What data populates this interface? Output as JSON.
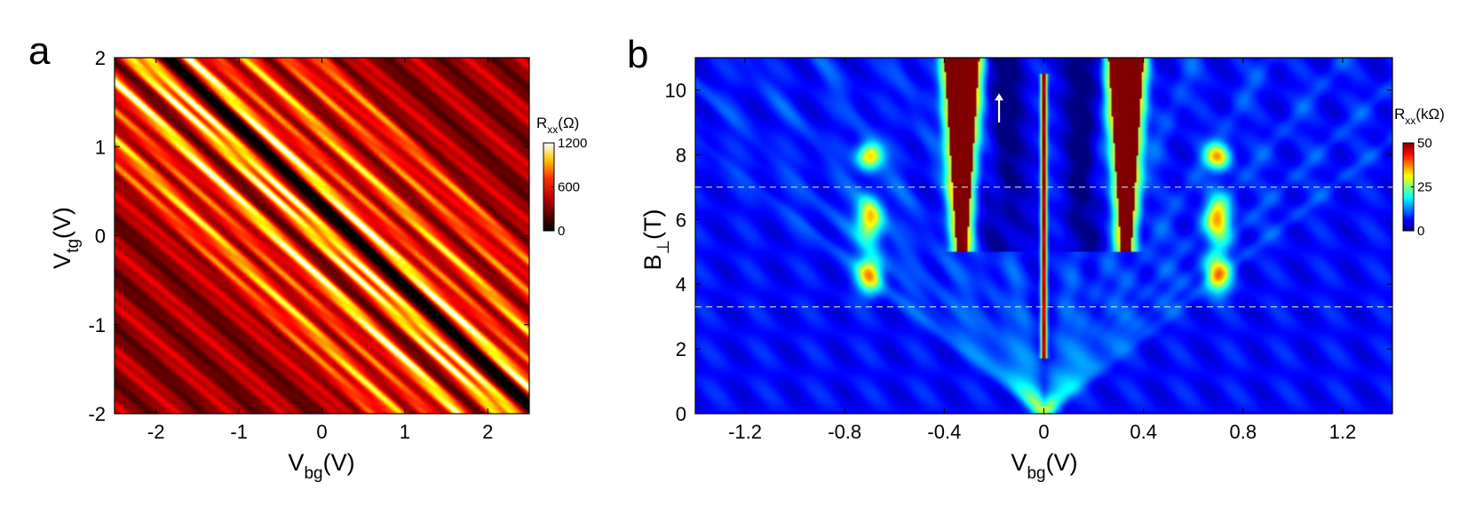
{
  "chart_data": [
    {
      "panel": "a",
      "type": "heatmap",
      "title": "",
      "xlabel": {
        "main": "V",
        "sub": "bg",
        "unit": "(V)"
      },
      "ylabel": {
        "main": "V",
        "sub": "tg",
        "unit": "(V)"
      },
      "xlim": [
        -2.5,
        2.5
      ],
      "ylim": [
        -2,
        2
      ],
      "xticks": [
        -2,
        -1,
        0,
        1,
        2
      ],
      "xtick_labels": [
        "-2",
        "-1",
        "0",
        "1",
        "2"
      ],
      "yticks": [
        2,
        1,
        0,
        -1,
        -2
      ],
      "ytick_labels": [
        "2",
        "1",
        "0",
        "-1",
        "-2"
      ],
      "colorbar": {
        "label": {
          "main": "R",
          "sub": "xx",
          "unit": "(Ω)"
        },
        "range": [
          0,
          1200
        ],
        "ticks": [
          1200,
          600,
          0
        ],
        "tick_labels": [
          "1200",
          "600",
          "0"
        ],
        "colormap": "hot"
      },
      "features": [
        {
          "desc": "diagonal resistance stripes",
          "slope": -0.9,
          "vbg_intercepts_at_vtg_0": [
            -1.6,
            -1.3,
            -0.95,
            -0.55,
            -0.1,
            0.1,
            0.6,
            0.95,
            1.3,
            1.75,
            2.2
          ]
        }
      ],
      "grid": false
    },
    {
      "panel": "b",
      "type": "heatmap",
      "title": "",
      "xlabel": {
        "main": "V",
        "sub": "bg",
        "unit": "(V)"
      },
      "ylabel": {
        "main": "B",
        "sub": "⊥",
        "unit": "(T)"
      },
      "xlim": [
        -1.4,
        1.4
      ],
      "ylim": [
        0,
        11
      ],
      "xticks": [
        -1.2,
        -0.8,
        -0.4,
        0,
        0.4,
        0.8,
        1.2
      ],
      "xtick_labels": [
        "-1.2",
        "-0.8",
        "-0.4",
        "0",
        "0.4",
        "0.8",
        "1.2"
      ],
      "yticks": [
        10,
        8,
        6,
        4,
        2,
        0
      ],
      "ytick_labels": [
        "10",
        "8",
        "6",
        "4",
        "2",
        "0"
      ],
      "colorbar": {
        "label": {
          "main": "R",
          "sub": "xx",
          "unit": "(kΩ)"
        },
        "range": [
          0,
          50
        ],
        "ticks": [
          50,
          25,
          0
        ],
        "tick_labels": [
          "50",
          "25",
          "0"
        ],
        "colormap": "jet"
      },
      "dashed_lines_B": [
        7,
        3.3
      ],
      "arrow_annotation": {
        "Vbg": -0.18,
        "B_from": 9.0,
        "B_to": 9.9
      },
      "features": [
        {
          "desc": "high-resistance lobes",
          "Vbg": -0.33,
          "B_min": 5.0,
          "B_max": 11
        },
        {
          "desc": "high-resistance lobes",
          "Vbg": 0.33,
          "B_min": 5.0,
          "B_max": 11
        },
        {
          "desc": "narrow peak",
          "Vbg": 0.0,
          "B_min": 1.7,
          "B_max": 10.5
        },
        {
          "desc": "green/red blobs",
          "Vbg": -0.7,
          "B_ranges": [
            [
              3.8,
              4.8
            ],
            [
              5.4,
              6.6
            ],
            [
              7.6,
              8.3
            ]
          ]
        },
        {
          "desc": "green/red blobs",
          "Vbg": 0.7,
          "B_ranges": [
            [
              3.8,
              4.8
            ],
            [
              5.4,
              6.6
            ],
            [
              7.6,
              8.3
            ]
          ]
        }
      ],
      "grid": false
    }
  ],
  "panel_labels": {
    "a": "a",
    "b": "b"
  }
}
